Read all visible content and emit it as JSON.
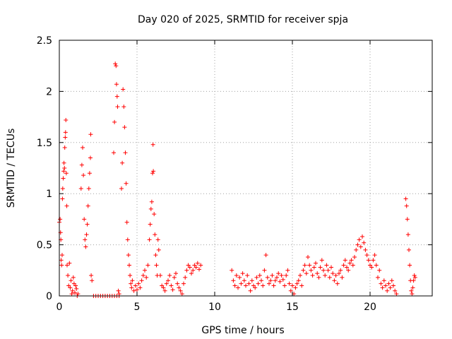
{
  "chart_data": {
    "type": "scatter",
    "title": "Day 020 of 2025, SRMTID for receiver spja",
    "xlabel": "GPS time / hours",
    "ylabel": "SRMTID / TECUs",
    "xlim": [
      0,
      24
    ],
    "ylim": [
      0,
      2.5
    ],
    "xticks": [
      0,
      5,
      10,
      15,
      20
    ],
    "xtick_labels": [
      "0",
      "5",
      "10",
      "15",
      "20"
    ],
    "yticks": [
      0,
      0.5,
      1,
      1.5,
      2,
      2.5
    ],
    "ytick_labels": [
      "0",
      "0.5",
      "1",
      "1.5",
      "2",
      "2.5"
    ],
    "grid": true,
    "marker": "+",
    "color": "#ff0000",
    "series": [
      {
        "name": "SRMTID",
        "points": [
          [
            0.0,
            0.72
          ],
          [
            0.05,
            0.75
          ],
          [
            0.08,
            0.62
          ],
          [
            0.1,
            0.55
          ],
          [
            0.12,
            0.35
          ],
          [
            0.15,
            0.3
          ],
          [
            0.18,
            0.4
          ],
          [
            0.2,
            0.95
          ],
          [
            0.22,
            1.05
          ],
          [
            0.25,
            1.15
          ],
          [
            0.28,
            1.22
          ],
          [
            0.3,
            1.3
          ],
          [
            0.33,
            1.25
          ],
          [
            0.35,
            1.45
          ],
          [
            0.38,
            1.55
          ],
          [
            0.4,
            1.6
          ],
          [
            0.42,
            1.72
          ],
          [
            0.45,
            1.2
          ],
          [
            0.48,
            0.88
          ],
          [
            0.5,
            0.3
          ],
          [
            0.55,
            0.2
          ],
          [
            0.6,
            0.1
          ],
          [
            0.65,
            0.32
          ],
          [
            0.7,
            0.08
          ],
          [
            0.75,
            0.15
          ],
          [
            0.8,
            0.02
          ],
          [
            0.85,
            0.05
          ],
          [
            0.9,
            0.18
          ],
          [
            0.95,
            0.12
          ],
          [
            1.0,
            0.03
          ],
          [
            1.05,
            0.1
          ],
          [
            1.1,
            0.07
          ],
          [
            1.15,
            0.0
          ],
          [
            1.2,
            0.02
          ],
          [
            1.4,
            1.05
          ],
          [
            1.45,
            1.28
          ],
          [
            1.5,
            1.45
          ],
          [
            1.55,
            1.18
          ],
          [
            1.6,
            0.75
          ],
          [
            1.65,
            0.55
          ],
          [
            1.7,
            0.48
          ],
          [
            1.75,
            0.6
          ],
          [
            1.8,
            0.7
          ],
          [
            1.85,
            0.88
          ],
          [
            1.9,
            1.05
          ],
          [
            1.95,
            1.2
          ],
          [
            2.0,
            1.35
          ],
          [
            2.02,
            1.58
          ],
          [
            2.05,
            0.2
          ],
          [
            2.1,
            0.15
          ],
          [
            2.2,
            0.0
          ],
          [
            2.35,
            0.0
          ],
          [
            2.5,
            0.0
          ],
          [
            2.65,
            0.0
          ],
          [
            2.8,
            0.0
          ],
          [
            2.95,
            0.0
          ],
          [
            3.1,
            0.0
          ],
          [
            3.25,
            0.0
          ],
          [
            3.4,
            0.0
          ],
          [
            3.55,
            0.0
          ],
          [
            3.7,
            0.0
          ],
          [
            3.85,
            0.0
          ],
          [
            3.5,
            1.4
          ],
          [
            3.55,
            1.7
          ],
          [
            3.6,
            2.27
          ],
          [
            3.65,
            2.25
          ],
          [
            3.68,
            2.07
          ],
          [
            3.72,
            1.95
          ],
          [
            3.75,
            1.85
          ],
          [
            3.8,
            0.05
          ],
          [
            3.85,
            0.02
          ],
          [
            4.0,
            1.05
          ],
          [
            4.05,
            1.3
          ],
          [
            4.1,
            2.02
          ],
          [
            4.15,
            1.85
          ],
          [
            4.2,
            1.65
          ],
          [
            4.25,
            1.4
          ],
          [
            4.3,
            1.1
          ],
          [
            4.35,
            0.72
          ],
          [
            4.4,
            0.55
          ],
          [
            4.45,
            0.4
          ],
          [
            4.5,
            0.3
          ],
          [
            4.55,
            0.2
          ],
          [
            4.6,
            0.12
          ],
          [
            4.65,
            0.08
          ],
          [
            4.7,
            0.15
          ],
          [
            4.8,
            0.05
          ],
          [
            4.9,
            0.1
          ],
          [
            5.0,
            0.06
          ],
          [
            5.1,
            0.12
          ],
          [
            5.2,
            0.08
          ],
          [
            5.3,
            0.15
          ],
          [
            5.4,
            0.2
          ],
          [
            5.5,
            0.25
          ],
          [
            5.6,
            0.18
          ],
          [
            5.7,
            0.3
          ],
          [
            5.8,
            0.55
          ],
          [
            5.85,
            0.7
          ],
          [
            5.9,
            0.85
          ],
          [
            5.95,
            0.92
          ],
          [
            6.0,
            1.2
          ],
          [
            6.03,
            1.48
          ],
          [
            6.05,
            1.22
          ],
          [
            6.1,
            0.8
          ],
          [
            6.15,
            0.6
          ],
          [
            6.2,
            0.4
          ],
          [
            6.25,
            0.3
          ],
          [
            6.3,
            0.2
          ],
          [
            6.35,
            0.55
          ],
          [
            6.4,
            0.45
          ],
          [
            6.5,
            0.2
          ],
          [
            6.6,
            0.1
          ],
          [
            6.7,
            0.08
          ],
          [
            6.8,
            0.05
          ],
          [
            6.9,
            0.12
          ],
          [
            7.0,
            0.15
          ],
          [
            7.1,
            0.2
          ],
          [
            7.2,
            0.1
          ],
          [
            7.3,
            0.06
          ],
          [
            7.4,
            0.18
          ],
          [
            7.5,
            0.22
          ],
          [
            7.6,
            0.12
          ],
          [
            7.7,
            0.08
          ],
          [
            7.8,
            0.05
          ],
          [
            7.9,
            0.02
          ],
          [
            8.0,
            0.12
          ],
          [
            8.1,
            0.18
          ],
          [
            8.2,
            0.25
          ],
          [
            8.3,
            0.3
          ],
          [
            8.4,
            0.28
          ],
          [
            8.5,
            0.22
          ],
          [
            8.6,
            0.25
          ],
          [
            8.7,
            0.3
          ],
          [
            8.8,
            0.28
          ],
          [
            8.9,
            0.32
          ],
          [
            9.0,
            0.26
          ],
          [
            9.1,
            0.3
          ],
          [
            11.1,
            0.25
          ],
          [
            11.2,
            0.15
          ],
          [
            11.3,
            0.1
          ],
          [
            11.4,
            0.2
          ],
          [
            11.5,
            0.08
          ],
          [
            11.6,
            0.18
          ],
          [
            11.7,
            0.12
          ],
          [
            11.8,
            0.22
          ],
          [
            11.9,
            0.15
          ],
          [
            12.0,
            0.1
          ],
          [
            12.1,
            0.2
          ],
          [
            12.2,
            0.12
          ],
          [
            12.3,
            0.05
          ],
          [
            12.4,
            0.15
          ],
          [
            12.5,
            0.1
          ],
          [
            12.6,
            0.08
          ],
          [
            12.7,
            0.18
          ],
          [
            12.8,
            0.12
          ],
          [
            12.9,
            0.2
          ],
          [
            13.0,
            0.15
          ],
          [
            13.1,
            0.1
          ],
          [
            13.2,
            0.25
          ],
          [
            13.3,
            0.4
          ],
          [
            13.4,
            0.18
          ],
          [
            13.5,
            0.12
          ],
          [
            13.6,
            0.15
          ],
          [
            13.7,
            0.2
          ],
          [
            13.8,
            0.1
          ],
          [
            13.9,
            0.15
          ],
          [
            14.0,
            0.18
          ],
          [
            14.1,
            0.22
          ],
          [
            14.2,
            0.14
          ],
          [
            14.3,
            0.2
          ],
          [
            14.4,
            0.16
          ],
          [
            14.5,
            0.1
          ],
          [
            14.6,
            0.2
          ],
          [
            14.7,
            0.25
          ],
          [
            14.8,
            0.12
          ],
          [
            14.9,
            0.05
          ],
          [
            15.0,
            0.1
          ],
          [
            15.1,
            0.02
          ],
          [
            15.2,
            0.08
          ],
          [
            15.3,
            0.12
          ],
          [
            15.4,
            0.15
          ],
          [
            15.5,
            0.2
          ],
          [
            15.6,
            0.1
          ],
          [
            15.7,
            0.25
          ],
          [
            15.8,
            0.3
          ],
          [
            15.9,
            0.22
          ],
          [
            16.0,
            0.38
          ],
          [
            16.1,
            0.3
          ],
          [
            16.2,
            0.25
          ],
          [
            16.3,
            0.2
          ],
          [
            16.4,
            0.28
          ],
          [
            16.5,
            0.32
          ],
          [
            16.6,
            0.22
          ],
          [
            16.7,
            0.18
          ],
          [
            16.8,
            0.28
          ],
          [
            16.9,
            0.35
          ],
          [
            17.0,
            0.25
          ],
          [
            17.1,
            0.2
          ],
          [
            17.2,
            0.3
          ],
          [
            17.3,
            0.25
          ],
          [
            17.4,
            0.18
          ],
          [
            17.5,
            0.28
          ],
          [
            17.6,
            0.22
          ],
          [
            17.7,
            0.15
          ],
          [
            17.8,
            0.2
          ],
          [
            17.9,
            0.12
          ],
          [
            18.0,
            0.22
          ],
          [
            18.1,
            0.25
          ],
          [
            18.2,
            0.18
          ],
          [
            18.3,
            0.3
          ],
          [
            18.4,
            0.35
          ],
          [
            18.5,
            0.28
          ],
          [
            18.6,
            0.25
          ],
          [
            18.7,
            0.32
          ],
          [
            18.8,
            0.35
          ],
          [
            18.9,
            0.3
          ],
          [
            19.0,
            0.38
          ],
          [
            19.1,
            0.45
          ],
          [
            19.2,
            0.5
          ],
          [
            19.3,
            0.55
          ],
          [
            19.4,
            0.48
          ],
          [
            19.5,
            0.58
          ],
          [
            19.6,
            0.52
          ],
          [
            19.7,
            0.45
          ],
          [
            19.8,
            0.4
          ],
          [
            19.9,
            0.35
          ],
          [
            20.0,
            0.3
          ],
          [
            20.1,
            0.28
          ],
          [
            20.2,
            0.35
          ],
          [
            20.3,
            0.4
          ],
          [
            20.4,
            0.3
          ],
          [
            20.5,
            0.18
          ],
          [
            20.6,
            0.25
          ],
          [
            20.7,
            0.12
          ],
          [
            20.8,
            0.08
          ],
          [
            20.9,
            0.15
          ],
          [
            21.0,
            0.1
          ],
          [
            21.1,
            0.05
          ],
          [
            21.2,
            0.12
          ],
          [
            21.3,
            0.08
          ],
          [
            21.4,
            0.15
          ],
          [
            21.5,
            0.1
          ],
          [
            21.6,
            0.05
          ],
          [
            21.7,
            0.02
          ],
          [
            22.3,
            0.95
          ],
          [
            22.35,
            0.88
          ],
          [
            22.4,
            0.75
          ],
          [
            22.45,
            0.6
          ],
          [
            22.5,
            0.45
          ],
          [
            22.55,
            0.3
          ],
          [
            22.6,
            0.15
          ],
          [
            22.65,
            0.05
          ],
          [
            22.7,
            0.02
          ],
          [
            22.75,
            0.08
          ],
          [
            22.8,
            0.15
          ],
          [
            22.85,
            0.2
          ],
          [
            22.9,
            0.18
          ]
        ]
      }
    ]
  }
}
